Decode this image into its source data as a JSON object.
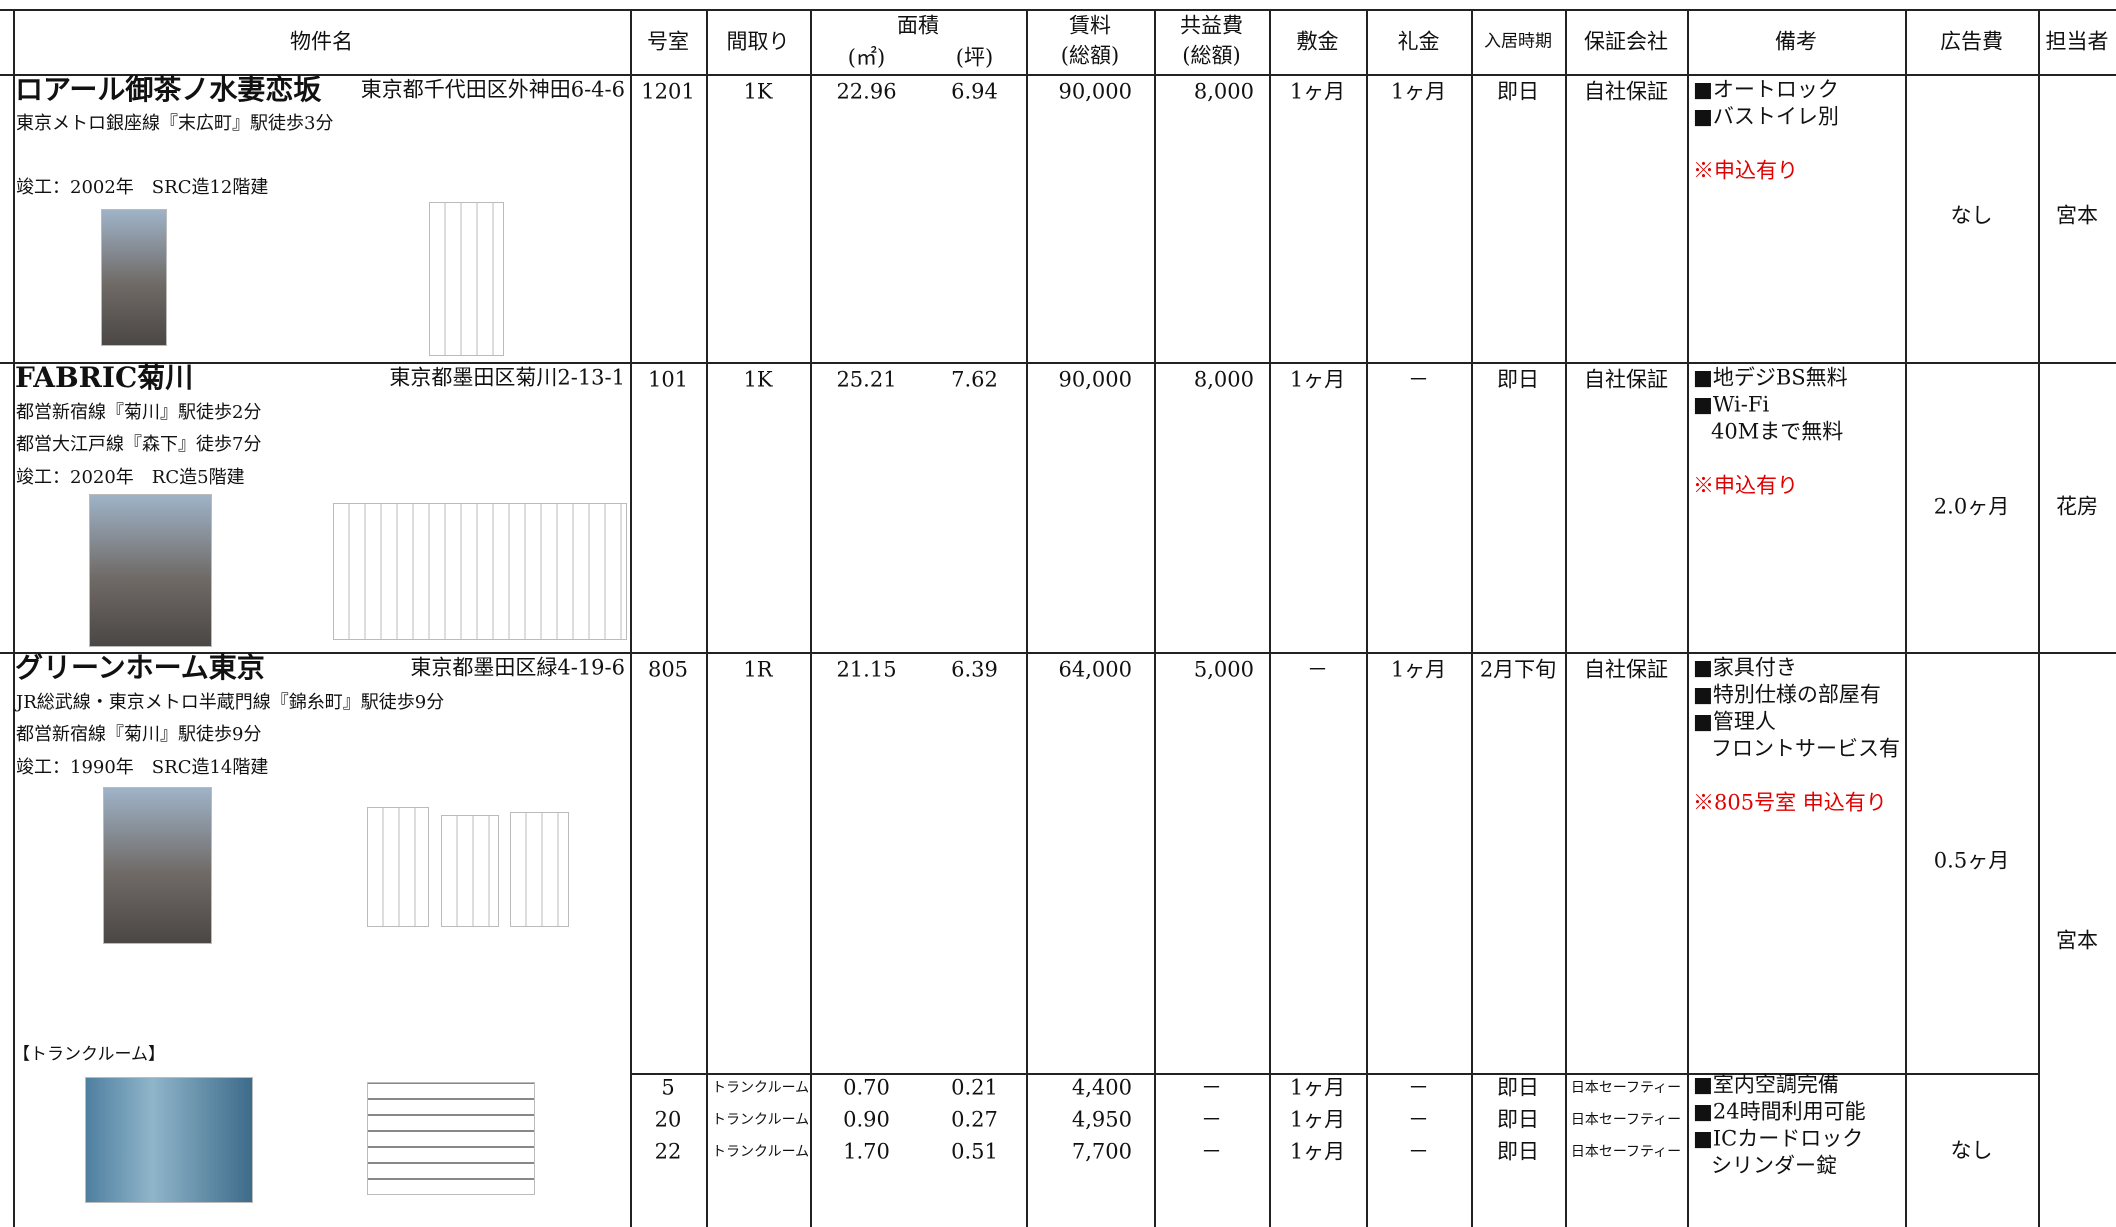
{
  "table": {
    "headers": [
      "物件名",
      "号室",
      "間取り",
      "面積",
      "賃料",
      "共益費",
      "敷金",
      "礼金",
      "入居時期",
      "保証会社",
      "備考",
      "広告費",
      "担当者"
    ],
    "header_subs": {
      "area": [
        "(㎡)",
        "(坪)"
      ],
      "rent": "(総額)",
      "fee": "(総額)"
    },
    "properties": [
      {
        "name": "ロアール御茶ノ水妻恋坂",
        "address": "東京都千代田区外神田6-4-6",
        "access": [
          "東京メトロ銀座線『末広町』駅徒歩3分"
        ],
        "built": "竣工：2002年　SRC造12階建",
        "units": [
          {
            "room": "1201",
            "layout": "1K",
            "area_sqm": "22.96",
            "area_tsubo": "6.94",
            "rent": "90,000",
            "fee": "8,000",
            "deposit": "1ヶ月",
            "key_money": "1ヶ月",
            "move_in": "即日",
            "guarantor": "自社保証"
          }
        ],
        "notes": [
          "■オートロック",
          "■バストイレ別"
        ],
        "remark": "※申込有り",
        "ad_fee": "なし",
        "staff": "宮本"
      },
      {
        "name": "FABRIC菊川",
        "address": "東京都墨田区菊川2-13-1",
        "access": [
          "都営新宿線『菊川』駅徒歩2分",
          "都営大江戸線『森下』徒歩7分"
        ],
        "built": "竣工：2020年　RC造5階建",
        "units": [
          {
            "room": "101",
            "layout": "1K",
            "area_sqm": "25.21",
            "area_tsubo": "7.62",
            "rent": "90,000",
            "fee": "8,000",
            "deposit": "1ヶ月",
            "key_money": "－",
            "move_in": "即日",
            "guarantor": "自社保証"
          }
        ],
        "notes": [
          "■地デジBS無料",
          "■Wi-Fi",
          "40Mまで無料"
        ],
        "remark": "※申込有り",
        "ad_fee": "2.0ヶ月",
        "staff": "花房"
      },
      {
        "name": "グリーンホーム東京",
        "address": "東京都墨田区緑4-19-6",
        "access": [
          "JR総武線・東京メトロ半蔵門線『錦糸町』駅徒歩9分",
          "都営新宿線『菊川』駅徒歩9分"
        ],
        "built": "竣工：1990年　SRC造14階建",
        "units": [
          {
            "room": "805",
            "layout": "1R",
            "area_sqm": "21.15",
            "area_tsubo": "6.39",
            "rent": "64,000",
            "fee": "5,000",
            "deposit": "－",
            "key_money": "1ヶ月",
            "move_in": "2月下旬",
            "guarantor": "自社保証"
          }
        ],
        "notes": [
          "■家具付き",
          "■特別仕様の部屋有",
          "■管理人",
          "フロントサービス有"
        ],
        "remark": "※805号室 申込有り",
        "ad_fee": "0.5ヶ月",
        "staff": "宮本",
        "trunk": {
          "label": "【トランクルーム】",
          "units": [
            {
              "room": "5",
              "layout": "トランクルーム",
              "area_sqm": "0.70",
              "area_tsubo": "0.21",
              "rent": "4,400",
              "fee": "－",
              "deposit": "1ヶ月",
              "key_money": "－",
              "move_in": "即日",
              "guarantor": "日本セーフティー"
            },
            {
              "room": "20",
              "layout": "トランクルーム",
              "area_sqm": "0.90",
              "area_tsubo": "0.27",
              "rent": "4,950",
              "fee": "－",
              "deposit": "1ヶ月",
              "key_money": "－",
              "move_in": "即日",
              "guarantor": "日本セーフティー"
            },
            {
              "room": "22",
              "layout": "トランクルーム",
              "area_sqm": "1.70",
              "area_tsubo": "0.51",
              "rent": "7,700",
              "fee": "－",
              "deposit": "1ヶ月",
              "key_money": "－",
              "move_in": "即日",
              "guarantor": "日本セーフティー"
            }
          ],
          "notes": [
            "■室内空調完備",
            "■24時間利用可能",
            "■ICカードロック",
            "シリンダー錠"
          ],
          "ad_fee": "なし"
        }
      }
    ]
  }
}
